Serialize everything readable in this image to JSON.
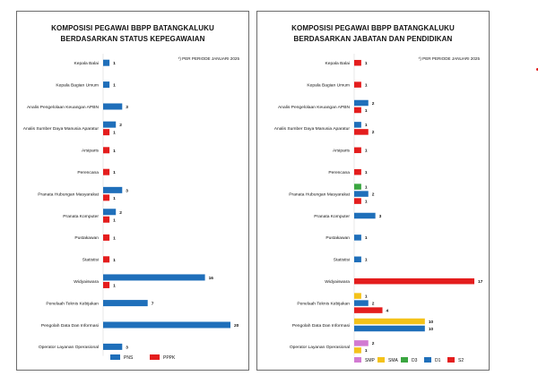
{
  "colors": {
    "PNS": "#1f6fba",
    "PPPK": "#e41d1d",
    "SMP": "#d27ad2",
    "SMA": "#f4c21a",
    "D3": "#3aa640",
    "D1": "#1f6fba",
    "S2": "#e41d1d",
    "accent_dot": "#e11b1b"
  },
  "chart_data": [
    {
      "type": "bar",
      "orientation": "horizontal",
      "title": "KOMPOSISI PEGAWAI BBPP BATANGKALUKU",
      "subtitle": "BERDASARKAN STATUS KEPEGAWAIAN",
      "note": "*) PER PERIODE JANUARI 2025",
      "xlim": [
        0,
        20
      ],
      "grid": false,
      "legend_position": "bottom",
      "categories": [
        "Kepala Balai",
        "Kepala Bagian Umum",
        "Analis Pengelolaan Keuangan APBN",
        "Analis Sumber Daya Manusia Aparatur",
        "Arsiparis",
        "Perencana",
        "Pranata Hubungan Masyarakat",
        "Pranata Komputer",
        "Pustakawan",
        "Statistisi",
        "Widyaiswara",
        "Penelaah Teknis Kebijakan",
        "Pengolah Data Dan Informasi",
        "Operator Layanan Operasional"
      ],
      "series": [
        {
          "name": "PNS",
          "values": [
            1,
            1,
            3,
            2,
            null,
            null,
            3,
            2,
            null,
            null,
            16,
            7,
            20,
            3
          ]
        },
        {
          "name": "PPPK",
          "values": [
            null,
            null,
            null,
            1,
            1,
            1,
            1,
            1,
            1,
            1,
            1,
            null,
            null,
            null
          ]
        }
      ]
    },
    {
      "type": "bar",
      "orientation": "horizontal",
      "title": "KOMPOSISI PEGAWAI BBPP BATANGKALUKU",
      "subtitle": "BERDASARKAN JABATAN DAN PENDIDIKAN",
      "note": "*) PER PERIODE JANUARI 2025",
      "xlim": [
        0,
        17
      ],
      "grid": false,
      "legend_position": "bottom",
      "categories": [
        "Kepala Balai",
        "Kepala Bagian Umum",
        "Analis Pengelolaan Keuangan APBN",
        "Analis Sumber Daya Manusia Aparatur",
        "Arsiparis",
        "Perencana",
        "Pranata Hubungan Masyarakat",
        "Pranata Komputer",
        "Pustakawan",
        "Statistisi",
        "Widyaiswara",
        "Penelaah Teknis Kebijakan",
        "Pengolah Data Dan Informasi",
        "Operator Layanan Operasional"
      ],
      "series": [
        {
          "name": "SMP",
          "values": [
            null,
            null,
            null,
            null,
            null,
            null,
            null,
            null,
            null,
            null,
            null,
            null,
            null,
            2
          ]
        },
        {
          "name": "SMA",
          "values": [
            null,
            null,
            null,
            null,
            null,
            null,
            null,
            null,
            null,
            null,
            null,
            1,
            10,
            1
          ]
        },
        {
          "name": "D3",
          "values": [
            null,
            null,
            null,
            null,
            null,
            null,
            1,
            null,
            null,
            null,
            null,
            null,
            null,
            null
          ]
        },
        {
          "name": "D1",
          "values": [
            null,
            null,
            2,
            1,
            null,
            null,
            2,
            3,
            1,
            1,
            null,
            2,
            10,
            null
          ]
        },
        {
          "name": "S2",
          "values": [
            1,
            1,
            1,
            2,
            1,
            1,
            1,
            null,
            null,
            null,
            17,
            4,
            null,
            null
          ]
        }
      ]
    }
  ]
}
